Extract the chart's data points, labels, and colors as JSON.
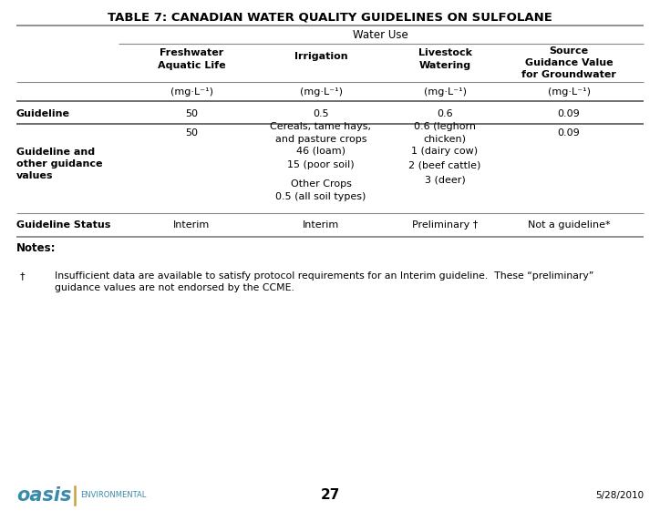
{
  "title": "TABLE 7: CANADIAN WATER QUALITY GUIDELINES ON SULFOLANE",
  "bg_color": "#ffffff",
  "header_group": "Water Use",
  "col_headers": [
    "Freshwater\nAquatic Life",
    "Irrigation",
    "Livestock\nWatering",
    "Source\nGuidance Value\nfor Groundwater"
  ],
  "units_row": [
    "(mg·L⁻¹)",
    "(mg·L⁻¹)",
    "(mg·L⁻¹)",
    "(mg·L⁻¹)"
  ],
  "row_label_guideline": "Guideline",
  "row_label_guidance": "Guideline and\nother guidance\nvalues",
  "row_label_status": "Guideline Status",
  "guideline_row": [
    "50",
    "0.5",
    "0.6",
    "0.09"
  ],
  "guidance_col1": "50",
  "guidance_col2_line1": "Cereals, tame hays,\nand pasture crops",
  "guidance_col2_line2": "46 (loam)",
  "guidance_col2_line3": "15 (poor soil)",
  "guidance_col2_line4": "Other Crops",
  "guidance_col2_line5": "0.5 (all soil types)",
  "guidance_col3_line1": "0.6 (leghorn\nchicken)",
  "guidance_col3_line2": "1 (dairy cow)",
  "guidance_col3_line3": "2 (beef cattle)",
  "guidance_col3_line4": "3 (deer)",
  "guidance_col4": "0.09",
  "status_row_col1": "Interim",
  "status_row_col2": "Interim",
  "status_row_col3": "Preliminary †",
  "status_row_col4": "Not a guideline*",
  "notes_label": "Notes:",
  "footnote_symbol": "†",
  "footnote_text": "Insufficient data are available to satisfy protocol requirements for an Interim guideline.  These “preliminary”\nguidance values are not endorsed by the CCME.",
  "footer_left_main": "oasis",
  "footer_left_sub": "ENVIRONMENTAL",
  "footer_center": "27",
  "footer_right": "5/28/2010",
  "oasis_color": "#3a8aaa",
  "env_color": "#3a8aaa",
  "separator_color": "#c8a040"
}
